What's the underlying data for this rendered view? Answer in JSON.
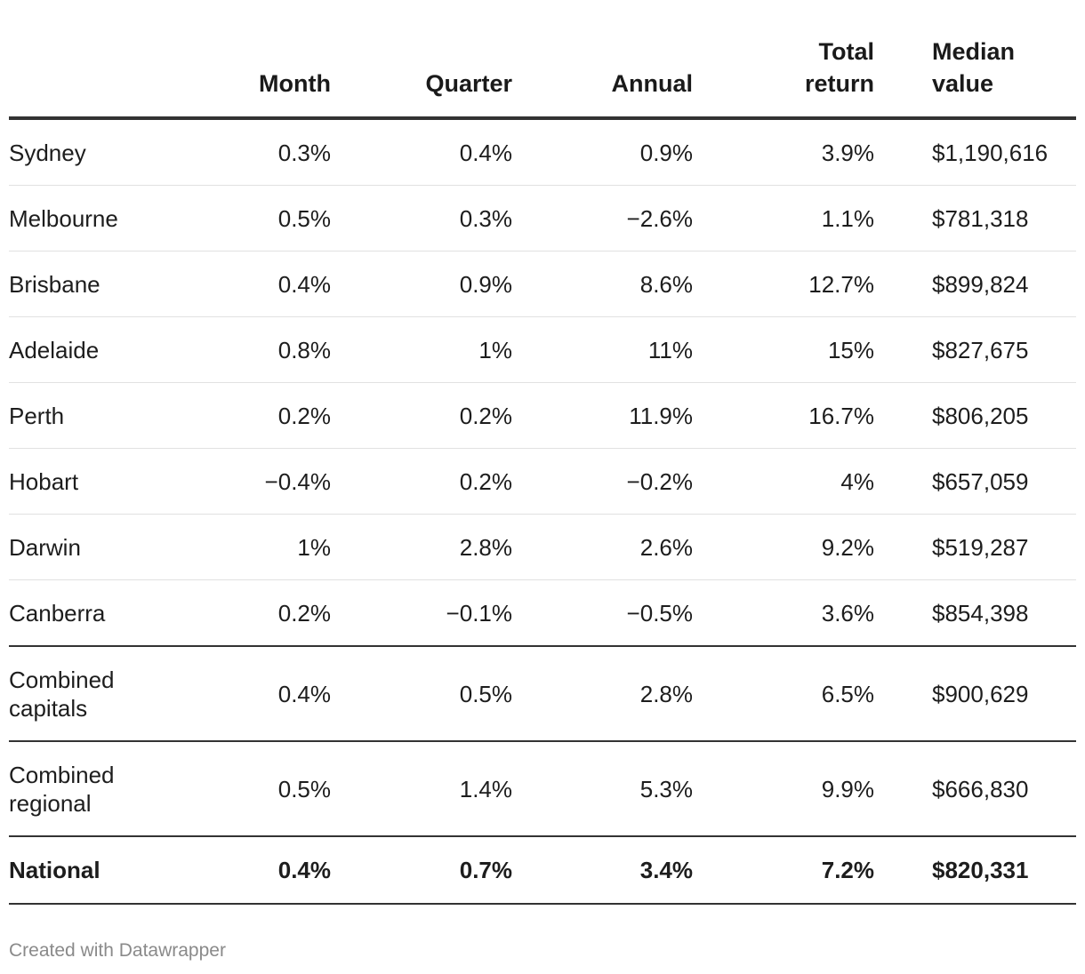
{
  "chart_data": {
    "type": "table",
    "columns": [
      "",
      "Month",
      "Quarter",
      "Annual",
      "Total\nreturn",
      "Median\nvalue"
    ],
    "rows": [
      {
        "region": "Sydney",
        "month": "0.3%",
        "quarter": "0.4%",
        "annual": "0.9%",
        "total_return": "3.9%",
        "median_value": "$1,190,616"
      },
      {
        "region": "Melbourne",
        "month": "0.5%",
        "quarter": "0.3%",
        "annual": "−2.6%",
        "total_return": "1.1%",
        "median_value": "$781,318"
      },
      {
        "region": "Brisbane",
        "month": "0.4%",
        "quarter": "0.9%",
        "annual": "8.6%",
        "total_return": "12.7%",
        "median_value": "$899,824"
      },
      {
        "region": "Adelaide",
        "month": "0.8%",
        "quarter": "1%",
        "annual": "11%",
        "total_return": "15%",
        "median_value": "$827,675"
      },
      {
        "region": "Perth",
        "month": "0.2%",
        "quarter": "0.2%",
        "annual": "11.9%",
        "total_return": "16.7%",
        "median_value": "$806,205"
      },
      {
        "region": "Hobart",
        "month": "−0.4%",
        "quarter": "0.2%",
        "annual": "−0.2%",
        "total_return": "4%",
        "median_value": "$657,059"
      },
      {
        "region": "Darwin",
        "month": "1%",
        "quarter": "2.8%",
        "annual": "2.6%",
        "total_return": "9.2%",
        "median_value": "$519,287"
      },
      {
        "region": "Canberra",
        "month": "0.2%",
        "quarter": "−0.1%",
        "annual": "−0.5%",
        "total_return": "3.6%",
        "median_value": "$854,398"
      },
      {
        "region": "Combined capitals",
        "month": "0.4%",
        "quarter": "0.5%",
        "annual": "2.8%",
        "total_return": "6.5%",
        "median_value": "$900,629"
      },
      {
        "region": "Combined regional",
        "month": "0.5%",
        "quarter": "1.4%",
        "annual": "5.3%",
        "total_return": "9.9%",
        "median_value": "$666,830"
      },
      {
        "region": "National",
        "month": "0.4%",
        "quarter": "0.7%",
        "annual": "3.4%",
        "total_return": "7.2%",
        "median_value": "$820,331"
      }
    ]
  },
  "header": {
    "month": "Month",
    "quarter": "Quarter",
    "annual": "Annual",
    "total_line1": "Total",
    "total_line2": "return",
    "median_line1": "Median",
    "median_line2": "value"
  },
  "footer": {
    "credit": "Created with Datawrapper"
  }
}
